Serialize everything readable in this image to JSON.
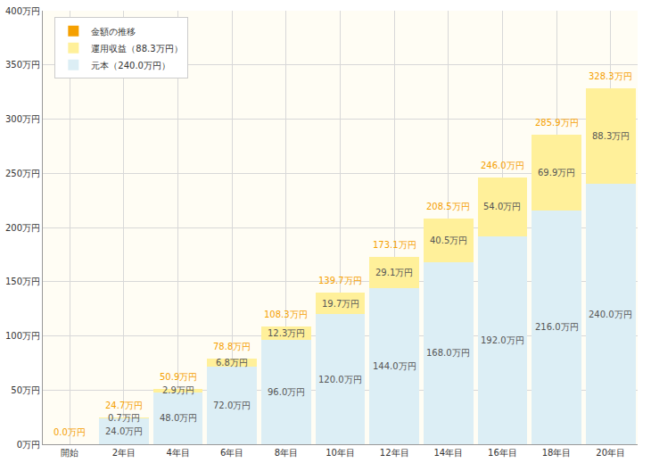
{
  "chart_data": {
    "type": "bar",
    "stacked": true,
    "data_labels": true,
    "grid": true,
    "legend": "upper left",
    "categories": [
      "開始",
      "2年目",
      "4年目",
      "6年目",
      "8年目",
      "10年目",
      "12年目",
      "14年目",
      "16年目",
      "18年目",
      "20年目"
    ],
    "series": [
      {
        "name": "元本（240.0万円）",
        "color": "#dceef5",
        "values": [
          0,
          24.0,
          48.0,
          72.0,
          96.0,
          120.0,
          144.0,
          168.0,
          192.0,
          216.0,
          240.0
        ],
        "value_labels": [
          null,
          "24.0万円",
          "48.0万円",
          "72.0万円",
          "96.0万円",
          "120.0万円",
          "144.0万円",
          "168.0万円",
          "192.0万円",
          "216.0万円",
          "240.0万円"
        ]
      },
      {
        "name": "運用収益（88.3万円）",
        "color": "#fff09a",
        "values": [
          0,
          0.7,
          2.9,
          6.8,
          12.3,
          19.7,
          29.1,
          40.5,
          54.0,
          69.9,
          88.3
        ],
        "value_labels": [
          null,
          "0.7万円",
          "2.9万円",
          "6.8万円",
          "12.3万円",
          "19.7万円",
          "29.1万円",
          "40.5万円",
          "54.0万円",
          "69.9万円",
          "88.3万円"
        ]
      },
      {
        "name": "金額の推移",
        "color": "#f5a000",
        "type": "total",
        "value_labels": [
          "0.0万円",
          "24.7万円",
          "50.9万円",
          "78.8万円",
          "108.3万円",
          "139.7万円",
          "173.1万円",
          "208.5万円",
          "246.0万円",
          "285.9万円",
          "328.3万円"
        ]
      }
    ],
    "ylim": [
      0,
      400
    ],
    "yticks": [
      {
        "value": 0,
        "label": "0万円"
      },
      {
        "value": 50,
        "label": "50万円"
      },
      {
        "value": 100,
        "label": "100万円"
      },
      {
        "value": 150,
        "label": "150万円"
      },
      {
        "value": 200,
        "label": "200万円"
      },
      {
        "value": 250,
        "label": "250万円"
      },
      {
        "value": 300,
        "label": "300万円"
      },
      {
        "value": 350,
        "label": "350万円"
      },
      {
        "value": 400,
        "label": "400万円"
      }
    ]
  }
}
